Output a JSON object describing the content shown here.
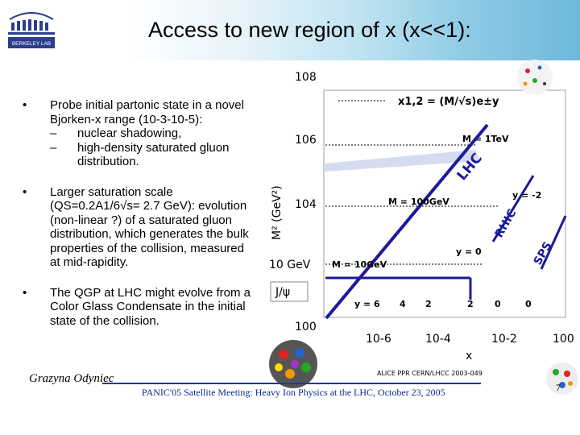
{
  "slide": {
    "title": "Access to new region of x (x<<1):",
    "bullets": [
      {
        "text": "Probe initial partonic state in a novel Bjorken-x range (10-3-10-5):",
        "subs": [
          "nuclear shadowing,",
          "high-density saturated gluon distribution."
        ]
      },
      {
        "text": "Larger saturation scale (QS=0.2A1/6√s= 2.7 GeV): evolution (non-linear ?) of a saturated gluon distribution, which generates the bulk properties of the collision, measured at mid-rapidity."
      },
      {
        "text": "The QGP at LHC might evolve from a Color Glass Condensate in the initial state of the collision."
      }
    ],
    "bullet_marker": "•",
    "sub_marker": "–",
    "author": "Grazyna Odyniec",
    "footer": "PANIC'05 Satellite Meeting: Heavy Ion Physics at the LHC, October 23, 2005",
    "page": "7"
  },
  "chart_data": {
    "type": "line",
    "xlabel": "x",
    "ylabel": "M² (GeV²)",
    "x_ticks": [
      "10-6",
      "10-4",
      "10-2",
      "100"
    ],
    "y_ticks": [
      "108",
      "106",
      "104",
      "10 GeV",
      "100"
    ],
    "formula": "x1,2 = (M/√s)e±y",
    "mass_labels": [
      "M = 1TeV",
      "M = 100GeV",
      "M = 10GeV"
    ],
    "rapidity_labels": [
      "y = 6",
      "4",
      "2",
      "2",
      "0",
      "0",
      "y = 0",
      "y = -2"
    ],
    "accelerators": [
      "LHC",
      "RHIC",
      "SPS"
    ],
    "jpsi_label": "J/ψ",
    "source": "ALICE PPR CERN/LHCC 2003-049",
    "colors": {
      "LHC": "#1a1a9c",
      "RHIC": "#1a1a9c",
      "SPS": "#1a1a9c",
      "jpsi": "#1a1a9c"
    }
  }
}
